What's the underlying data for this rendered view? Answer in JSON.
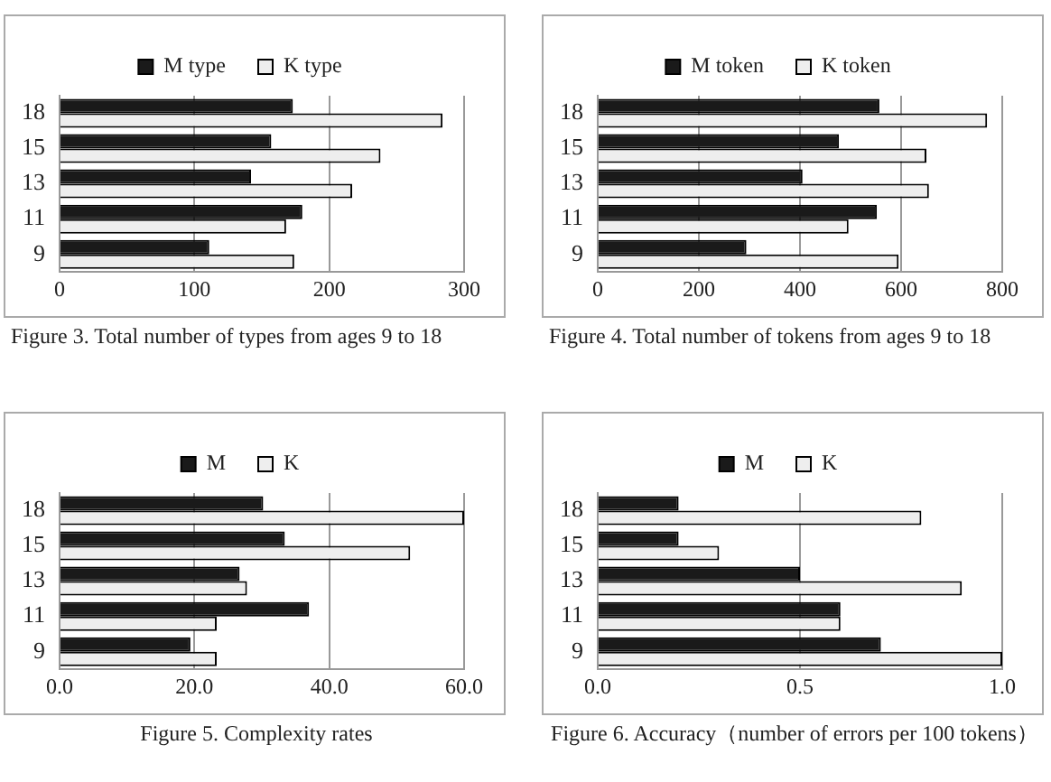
{
  "chart_data": [
    {
      "type": "bar",
      "orientation": "horizontal",
      "title": "Figure 3. Total number of types from ages 9 to 18",
      "categories": [
        "18",
        "15",
        "13",
        "11",
        "9"
      ],
      "series": [
        {
          "name": "M type",
          "color": "#1a1a1a",
          "values": [
            173,
            157,
            142,
            180,
            111
          ]
        },
        {
          "name": "K type",
          "color": "#eeeeee",
          "values": [
            284,
            238,
            217,
            168,
            174
          ]
        }
      ],
      "xlim": [
        0,
        300
      ],
      "xticks": [
        0,
        100,
        200,
        300
      ],
      "grid": "x",
      "legend": "top"
    },
    {
      "type": "bar",
      "orientation": "horizontal",
      "title": "Figure 4. Total number of tokens from ages 9 to 18",
      "categories": [
        "18",
        "15",
        "13",
        "11",
        "9"
      ],
      "series": [
        {
          "name": "M token",
          "color": "#1a1a1a",
          "values": [
            557,
            477,
            405,
            552,
            294
          ]
        },
        {
          "name": "K token",
          "color": "#eeeeee",
          "values": [
            770,
            650,
            655,
            496,
            595
          ]
        }
      ],
      "xlim": [
        0,
        800
      ],
      "xticks": [
        0,
        200,
        400,
        600,
        800
      ],
      "grid": "x",
      "legend": "top"
    },
    {
      "type": "bar",
      "orientation": "horizontal",
      "title": "Figure 5. Complexity rates",
      "categories": [
        "18",
        "15",
        "13",
        "11",
        "9"
      ],
      "series": [
        {
          "name": "M",
          "color": "#1a1a1a",
          "values": [
            30.2,
            33.4,
            26.7,
            37.0,
            19.4
          ]
        },
        {
          "name": "K",
          "color": "#eeeeee",
          "values": [
            60.0,
            52.0,
            27.8,
            23.3,
            23.3
          ]
        }
      ],
      "xlim": [
        0,
        60
      ],
      "xticks": [
        {
          "value": 0,
          "label": "0.0"
        },
        {
          "value": 20,
          "label": "20.0"
        },
        {
          "value": 40,
          "label": "40.0"
        },
        {
          "value": 60,
          "label": "60.0"
        }
      ],
      "grid": "x",
      "legend": "top"
    },
    {
      "type": "bar",
      "orientation": "horizontal",
      "title": "Figure 6. Accuracy（number of errors per 100 tokens）",
      "categories": [
        "18",
        "15",
        "13",
        "11",
        "9"
      ],
      "series": [
        {
          "name": "M",
          "color": "#1a1a1a",
          "values": [
            0.2,
            0.2,
            0.5,
            0.6,
            0.7
          ]
        },
        {
          "name": "K",
          "color": "#eeeeee",
          "values": [
            0.8,
            0.3,
            0.9,
            0.6,
            1.0
          ]
        }
      ],
      "xlim": [
        0,
        1
      ],
      "xticks": [
        {
          "value": 0,
          "label": "0.0"
        },
        {
          "value": 0.5,
          "label": "0.5"
        },
        {
          "value": 1,
          "label": "1.0"
        }
      ],
      "grid": "x",
      "legend": "top"
    }
  ]
}
